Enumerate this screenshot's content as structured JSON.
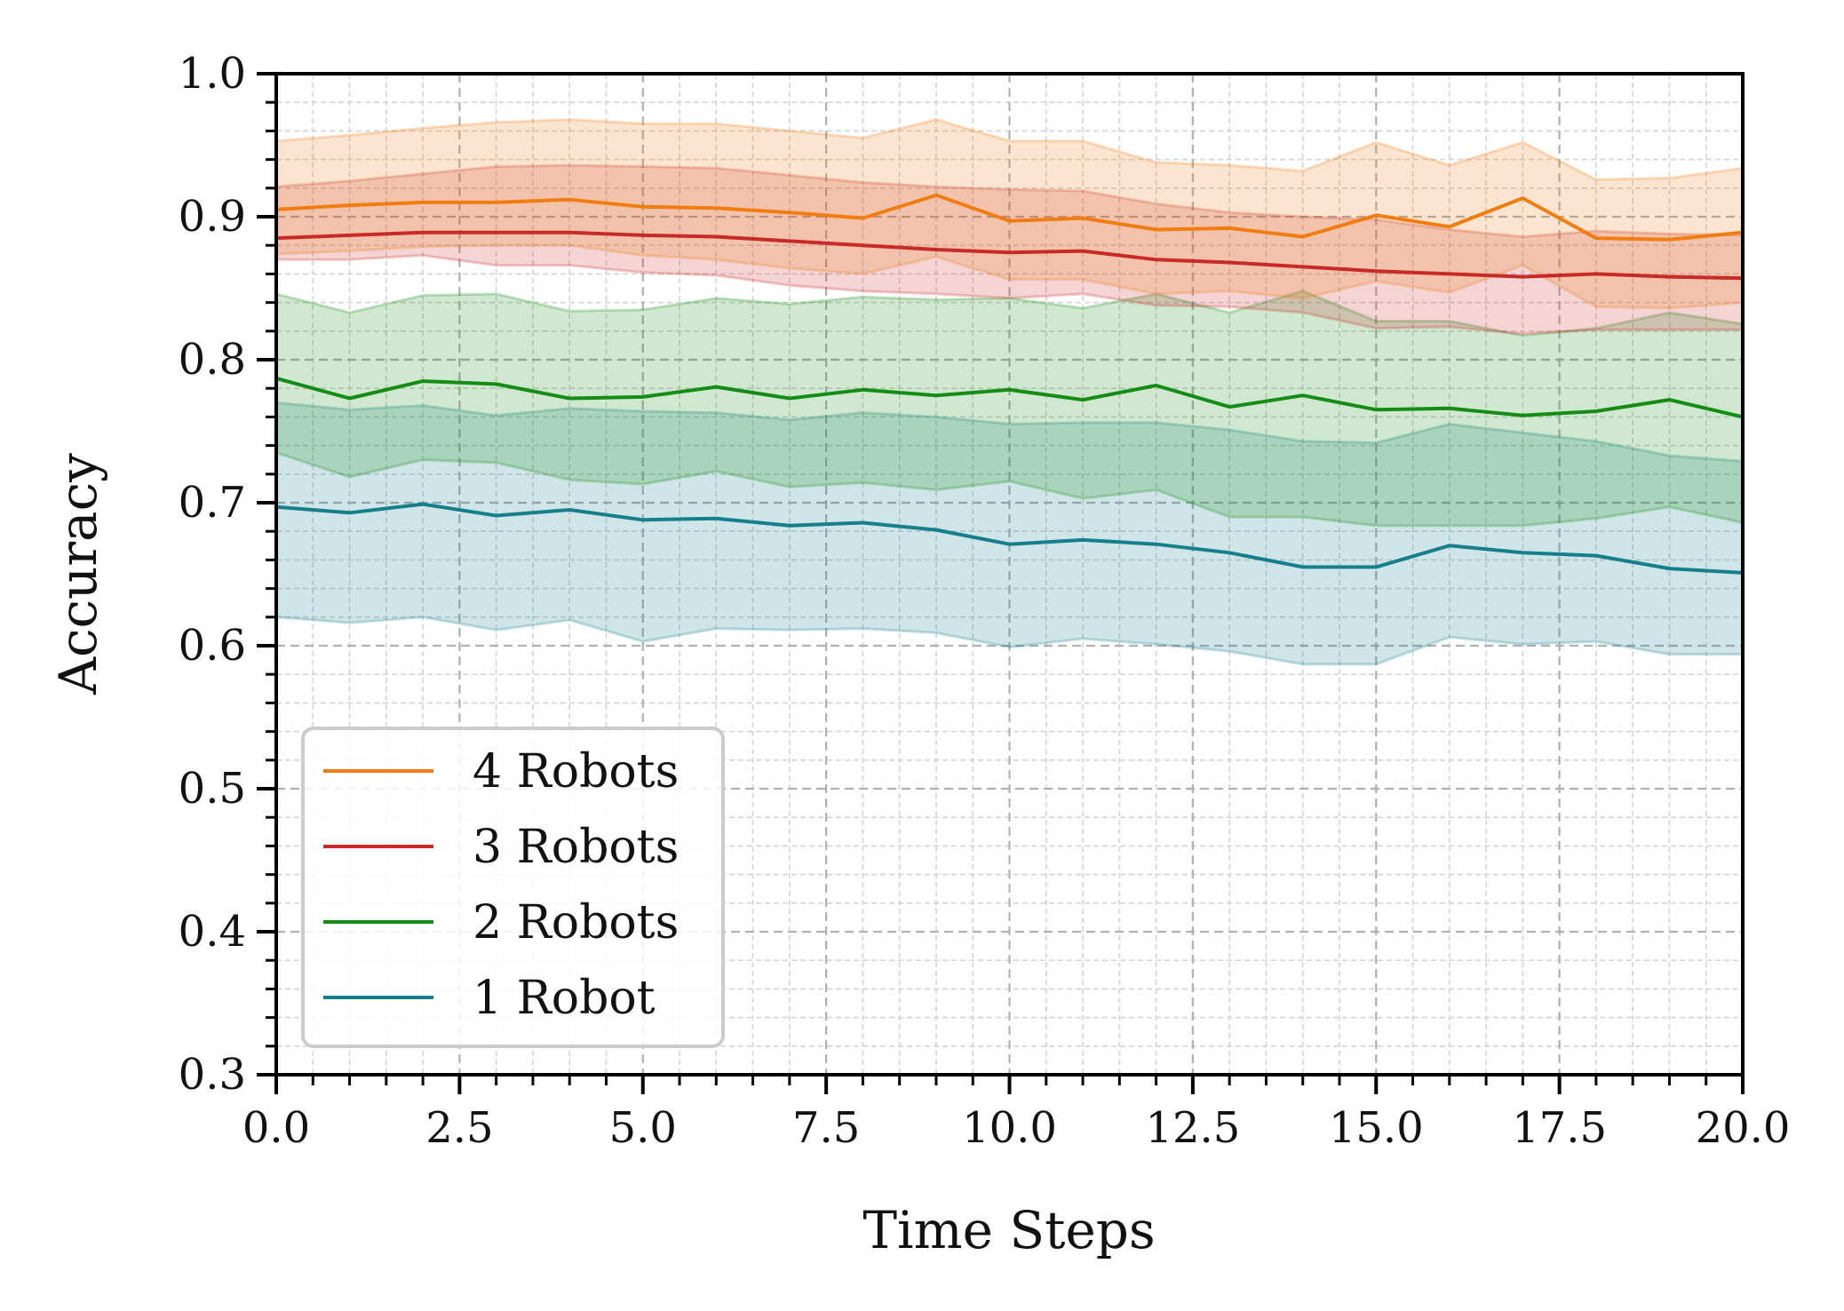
{
  "chart_data": {
    "type": "line",
    "title": "",
    "xlabel": "Time Steps",
    "ylabel": "Accuracy",
    "xlim": [
      0,
      20
    ],
    "ylim": [
      0.3,
      1.0
    ],
    "x_ticks": [
      0,
      2.5,
      5,
      7.5,
      10,
      12.5,
      15,
      17.5,
      20
    ],
    "x_tick_labels": [
      "0.0",
      "2.5",
      "5.0",
      "7.5",
      "10.0",
      "12.5",
      "15.0",
      "17.5",
      "20.0"
    ],
    "y_ticks": [
      0.3,
      0.4,
      0.5,
      0.6,
      0.7,
      0.8,
      0.9,
      1.0
    ],
    "y_tick_labels": [
      "0.3",
      "0.4",
      "0.5",
      "0.6",
      "0.7",
      "0.8",
      "0.9",
      "1.0"
    ],
    "grid": "major and minor, dashed",
    "legend_position": "lower-left",
    "x": [
      0,
      1,
      2,
      3,
      4,
      5,
      6,
      7,
      8,
      9,
      10,
      11,
      12,
      13,
      14,
      15,
      16,
      17,
      18,
      19,
      20
    ],
    "series": [
      {
        "name": "4 Robots",
        "color": "#f07d12",
        "values": [
          0.905,
          0.908,
          0.91,
          0.91,
          0.912,
          0.907,
          0.906,
          0.903,
          0.899,
          0.915,
          0.897,
          0.899,
          0.891,
          0.892,
          0.886,
          0.901,
          0.893,
          0.913,
          0.885,
          0.884,
          0.889
        ],
        "upper": [
          0.953,
          0.957,
          0.962,
          0.966,
          0.968,
          0.965,
          0.965,
          0.96,
          0.955,
          0.968,
          0.953,
          0.953,
          0.938,
          0.936,
          0.932,
          0.952,
          0.936,
          0.952,
          0.926,
          0.927,
          0.934
        ],
        "lower": [
          0.874,
          0.876,
          0.879,
          0.88,
          0.88,
          0.873,
          0.87,
          0.864,
          0.86,
          0.872,
          0.856,
          0.856,
          0.846,
          0.848,
          0.843,
          0.855,
          0.847,
          0.866,
          0.837,
          0.836,
          0.84
        ]
      },
      {
        "name": "3 Robots",
        "color": "#c82a27",
        "values": [
          0.885,
          0.887,
          0.889,
          0.889,
          0.889,
          0.887,
          0.886,
          0.883,
          0.88,
          0.877,
          0.875,
          0.876,
          0.87,
          0.868,
          0.865,
          0.862,
          0.86,
          0.858,
          0.86,
          0.858,
          0.857
        ],
        "upper": [
          0.921,
          0.925,
          0.93,
          0.935,
          0.936,
          0.935,
          0.934,
          0.929,
          0.924,
          0.921,
          0.919,
          0.918,
          0.909,
          0.903,
          0.9,
          0.898,
          0.891,
          0.886,
          0.89,
          0.888,
          0.887
        ],
        "lower": [
          0.87,
          0.87,
          0.873,
          0.866,
          0.866,
          0.861,
          0.859,
          0.852,
          0.848,
          0.846,
          0.843,
          0.846,
          0.838,
          0.837,
          0.833,
          0.822,
          0.823,
          0.818,
          0.821,
          0.821,
          0.821
        ]
      },
      {
        "name": "2 Robots",
        "color": "#158c15",
        "values": [
          0.787,
          0.773,
          0.785,
          0.783,
          0.773,
          0.774,
          0.781,
          0.773,
          0.779,
          0.775,
          0.779,
          0.772,
          0.782,
          0.767,
          0.775,
          0.765,
          0.766,
          0.761,
          0.764,
          0.772,
          0.76
        ],
        "upper": [
          0.846,
          0.833,
          0.845,
          0.846,
          0.834,
          0.835,
          0.843,
          0.839,
          0.844,
          0.842,
          0.843,
          0.836,
          0.846,
          0.833,
          0.848,
          0.827,
          0.827,
          0.817,
          0.822,
          0.833,
          0.825
        ],
        "lower": [
          0.735,
          0.718,
          0.73,
          0.728,
          0.716,
          0.713,
          0.722,
          0.711,
          0.714,
          0.709,
          0.715,
          0.703,
          0.709,
          0.69,
          0.69,
          0.684,
          0.684,
          0.684,
          0.689,
          0.697,
          0.686
        ]
      },
      {
        "name": "1 Robot",
        "color": "#157f8c",
        "values": [
          0.697,
          0.693,
          0.699,
          0.691,
          0.695,
          0.688,
          0.689,
          0.684,
          0.686,
          0.681,
          0.671,
          0.674,
          0.671,
          0.665,
          0.655,
          0.655,
          0.67,
          0.665,
          0.663,
          0.654,
          0.651
        ],
        "upper": [
          0.77,
          0.765,
          0.768,
          0.761,
          0.766,
          0.764,
          0.763,
          0.758,
          0.763,
          0.76,
          0.755,
          0.756,
          0.756,
          0.751,
          0.743,
          0.742,
          0.755,
          0.749,
          0.743,
          0.733,
          0.729
        ],
        "lower": [
          0.62,
          0.616,
          0.62,
          0.611,
          0.618,
          0.603,
          0.612,
          0.611,
          0.612,
          0.609,
          0.599,
          0.605,
          0.601,
          0.596,
          0.587,
          0.587,
          0.606,
          0.601,
          0.603,
          0.594,
          0.594
        ]
      }
    ]
  }
}
